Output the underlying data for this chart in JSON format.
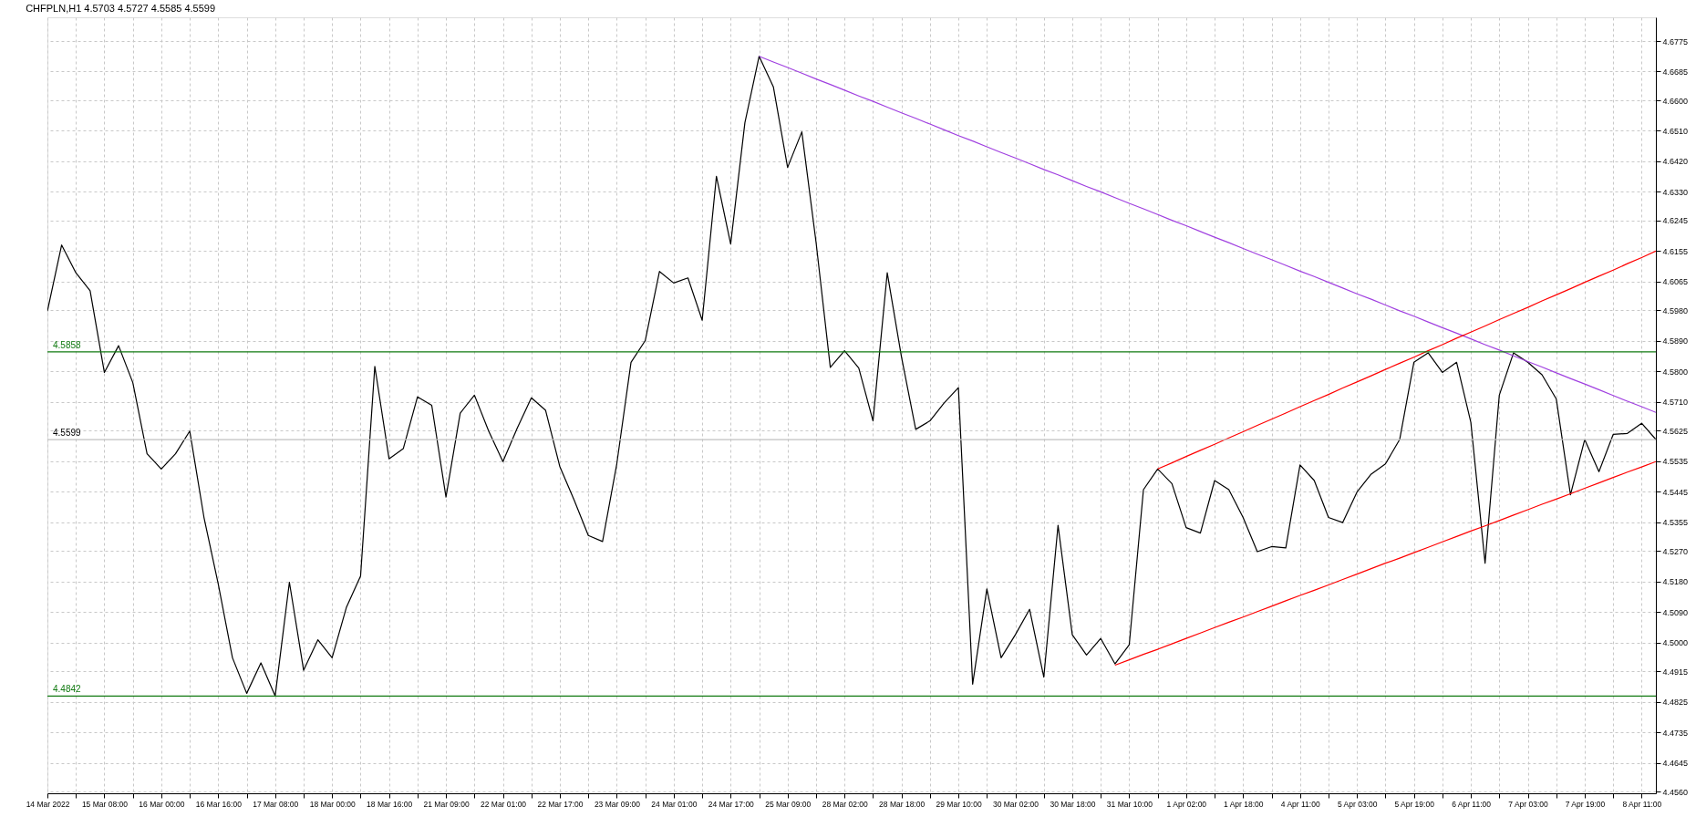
{
  "chart_data": {
    "type": "line",
    "title": "CHFPLN,H1 4.5703 4.5727 4.5585 4.5599",
    "categories": [
      "14 Mar 2022",
      null,
      null,
      null,
      "15 Mar 08:00",
      null,
      null,
      null,
      "16 Mar 00:00",
      null,
      null,
      null,
      "16 Mar 16:00",
      null,
      null,
      null,
      "17 Mar 08:00",
      null,
      null,
      null,
      "18 Mar 00:00",
      null,
      null,
      null,
      "18 Mar 16:00",
      null,
      null,
      null,
      "21 Mar 09:00",
      null,
      null,
      null,
      "22 Mar 01:00",
      null,
      null,
      null,
      "22 Mar 17:00",
      null,
      null,
      null,
      "23 Mar 09:00",
      null,
      null,
      null,
      "24 Mar 01:00",
      null,
      null,
      null,
      "24 Mar 17:00",
      null,
      null,
      null,
      "25 Mar 09:00",
      null,
      null,
      null,
      "28 Mar 02:00",
      null,
      null,
      null,
      "28 Mar 18:00",
      null,
      null,
      null,
      "29 Mar 10:00",
      null,
      null,
      null,
      "30 Mar 02:00",
      null,
      null,
      null,
      "30 Mar 18:00",
      null,
      null,
      null,
      "31 Mar 10:00",
      null,
      null,
      null,
      "1 Apr 02:00",
      null,
      null,
      null,
      "1 Apr 18:00",
      null,
      null,
      null,
      "4 Apr 11:00",
      null,
      null,
      null,
      "5 Apr 03:00",
      null,
      null,
      null,
      "5 Apr 19:00",
      null,
      null,
      null,
      "6 Apr 11:00",
      null,
      null,
      null,
      "7 Apr 03:00",
      null,
      null,
      null,
      "7 Apr 19:00",
      null,
      null,
      null,
      "8 Apr 11:00",
      null
    ],
    "ylim": [
      4.4555,
      4.6845
    ],
    "yticks": [
      {
        "value": 4.456,
        "label": "4.4560"
      },
      {
        "value": 4.4645,
        "label": "4.4645"
      },
      {
        "value": 4.4735,
        "label": "4.4735"
      },
      {
        "value": 4.4825,
        "label": "4.4825"
      },
      {
        "value": 4.4915,
        "label": "4.4915"
      },
      {
        "value": 4.5,
        "label": "4.5000"
      },
      {
        "value": 4.509,
        "label": "4.5090"
      },
      {
        "value": 4.518,
        "label": "4.5180"
      },
      {
        "value": 4.527,
        "label": "4.5270"
      },
      {
        "value": 4.5355,
        "label": "4.5355"
      },
      {
        "value": 4.5445,
        "label": "4.5445"
      },
      {
        "value": 4.5535,
        "label": "4.5535"
      },
      {
        "value": 4.5625,
        "label": "4.5625"
      },
      {
        "value": 4.571,
        "label": "4.5710"
      },
      {
        "value": 4.58,
        "label": "4.5800"
      },
      {
        "value": 4.589,
        "label": "4.5890"
      },
      {
        "value": 4.598,
        "label": "4.5980"
      },
      {
        "value": 4.6065,
        "label": "4.6065"
      },
      {
        "value": 4.6155,
        "label": "4.6155"
      },
      {
        "value": 4.6245,
        "label": "4.6245"
      },
      {
        "value": 4.633,
        "label": "4.6330"
      },
      {
        "value": 4.642,
        "label": "4.6420"
      },
      {
        "value": 4.651,
        "label": "4.6510"
      },
      {
        "value": 4.66,
        "label": "4.6600"
      },
      {
        "value": 4.6685,
        "label": "4.6685"
      },
      {
        "value": 4.6775,
        "label": "4.6775"
      }
    ],
    "grid": true,
    "marker": "none",
    "line_style": "solid",
    "ref_lines": [
      {
        "axis": "y",
        "value": 4.5858,
        "label": "4.5858",
        "color": "#117a11"
      },
      {
        "axis": "y",
        "value": 4.4842,
        "label": "4.4842",
        "color": "#117a11"
      },
      {
        "axis": "y",
        "value": 4.5599,
        "label": "4.5599",
        "color": "#c0c0c0"
      }
    ],
    "series": [
      {
        "color": "#000000",
        "values": [
          4.5978,
          4.6173,
          4.6091,
          4.6038,
          4.5797,
          4.5876,
          4.5767,
          4.5557,
          4.5512,
          4.5557,
          4.5624,
          4.5369,
          4.5173,
          4.4955,
          4.485,
          4.494,
          4.4842,
          4.5178,
          4.4918,
          4.5008,
          4.4955,
          4.5103,
          4.5196,
          4.5815,
          4.5542,
          4.5572,
          4.5725,
          4.57,
          4.5429,
          4.5677,
          4.573,
          4.5624,
          4.5534,
          4.5632,
          4.5722,
          4.5685,
          4.5519,
          4.5421,
          4.5316,
          4.5298,
          4.5527,
          4.5827,
          4.5891,
          4.6095,
          4.6061,
          4.6076,
          4.5951,
          4.6376,
          4.6176,
          4.6534,
          4.673,
          4.664,
          4.6402,
          4.6507,
          4.6181,
          4.5812,
          4.5861,
          4.581,
          4.5654,
          4.6091,
          4.5843,
          4.5629,
          4.5654,
          4.5707,
          4.5752,
          4.4877,
          4.5158,
          4.4955,
          4.5023,
          4.5098,
          4.4898,
          4.5346,
          4.5023,
          4.4963,
          4.5012,
          4.4937,
          4.4993,
          4.5451,
          4.5512,
          4.5469,
          4.5339,
          4.5323,
          4.5478,
          4.5451,
          4.5369,
          4.5268,
          4.5283,
          4.5279,
          4.5524,
          4.5478,
          4.5369,
          4.5354,
          4.5444,
          4.5497,
          4.5527,
          4.5599,
          4.5827,
          4.5855,
          4.5797,
          4.5827,
          4.565,
          4.5234,
          4.573,
          4.5855,
          4.5827,
          4.579,
          4.5719,
          4.5436,
          4.5599,
          4.5504,
          4.5614,
          4.5617,
          4.5647,
          4.5599
        ]
      },
      {
        "type": "line",
        "color": "#a040e0",
        "values": [
          null,
          null,
          null,
          null,
          null,
          null,
          null,
          null,
          null,
          null,
          null,
          null,
          null,
          null,
          null,
          null,
          null,
          null,
          null,
          null,
          null,
          null,
          null,
          null,
          null,
          null,
          null,
          null,
          null,
          null,
          null,
          null,
          null,
          null,
          null,
          null,
          null,
          null,
          null,
          null,
          null,
          null,
          null,
          null,
          null,
          null,
          null,
          null,
          null,
          null,
          4.673,
          4.6713,
          4.6697,
          4.668,
          4.6663,
          4.6647,
          4.663,
          4.6613,
          4.6597,
          4.658,
          4.6563,
          4.6547,
          4.653,
          4.6513,
          4.6496,
          4.648,
          4.6463,
          4.6446,
          4.643,
          4.6413,
          4.6396,
          4.638,
          4.6363,
          4.6346,
          4.633,
          4.6313,
          4.6296,
          4.628,
          4.6263,
          4.6246,
          4.623,
          4.6213,
          4.6196,
          4.618,
          4.6163,
          4.6146,
          4.613,
          4.6113,
          4.6096,
          4.608,
          4.6063,
          4.6046,
          4.6029,
          4.6013,
          4.5996,
          4.5979,
          4.5963,
          4.5946,
          4.5929,
          4.5913,
          4.5896,
          4.5879,
          4.5863,
          4.5846,
          4.5829,
          4.5813,
          4.5796,
          4.5779,
          4.5763,
          4.5746,
          4.5729,
          4.5712,
          4.5696,
          4.5679
        ]
      },
      {
        "type": "line",
        "color": "#ff0000",
        "values": [
          null,
          null,
          null,
          null,
          null,
          null,
          null,
          null,
          null,
          null,
          null,
          null,
          null,
          null,
          null,
          null,
          null,
          null,
          null,
          null,
          null,
          null,
          null,
          null,
          null,
          null,
          null,
          null,
          null,
          null,
          null,
          null,
          null,
          null,
          null,
          null,
          null,
          null,
          null,
          null,
          null,
          null,
          null,
          null,
          null,
          null,
          null,
          null,
          null,
          null,
          null,
          null,
          null,
          null,
          null,
          null,
          null,
          null,
          null,
          null,
          null,
          null,
          null,
          null,
          null,
          null,
          null,
          null,
          null,
          null,
          null,
          null,
          null,
          null,
          null,
          null,
          null,
          null,
          4.5512,
          4.553,
          4.5549,
          4.5567,
          4.5585,
          4.5604,
          4.5622,
          4.5641,
          4.5659,
          4.5677,
          4.5696,
          4.5714,
          4.5732,
          4.5751,
          4.5769,
          4.5787,
          4.5806,
          4.5824,
          4.5842,
          4.5861,
          4.5879,
          4.5898,
          4.5916,
          4.5934,
          4.5953,
          4.5971,
          4.5989,
          4.6008,
          4.6026,
          4.6044,
          4.6063,
          4.6081,
          4.6099,
          4.6118,
          4.6136,
          4.6155
        ]
      },
      {
        "type": "line",
        "color": "#ff0000",
        "values": [
          null,
          null,
          null,
          null,
          null,
          null,
          null,
          null,
          null,
          null,
          null,
          null,
          null,
          null,
          null,
          null,
          null,
          null,
          null,
          null,
          null,
          null,
          null,
          null,
          null,
          null,
          null,
          null,
          null,
          null,
          null,
          null,
          null,
          null,
          null,
          null,
          null,
          null,
          null,
          null,
          null,
          null,
          null,
          null,
          null,
          null,
          null,
          null,
          null,
          null,
          null,
          null,
          null,
          null,
          null,
          null,
          null,
          null,
          null,
          null,
          null,
          null,
          null,
          null,
          null,
          null,
          null,
          null,
          null,
          null,
          null,
          null,
          null,
          null,
          null,
          4.4933,
          4.4949,
          4.4965,
          4.498,
          4.4996,
          4.5012,
          4.5028,
          4.5044,
          4.506,
          4.5075,
          4.5091,
          4.5107,
          4.5123,
          4.5139,
          4.5154,
          4.517,
          4.5186,
          4.5202,
          4.5218,
          4.5234,
          4.5249,
          4.5265,
          4.5281,
          4.5297,
          4.5313,
          4.5329,
          4.5344,
          4.536,
          4.5376,
          4.5392,
          4.5408,
          4.5423,
          4.5439,
          4.5455,
          4.5471,
          4.5487,
          4.5503,
          4.5518,
          4.5534
        ]
      }
    ]
  }
}
